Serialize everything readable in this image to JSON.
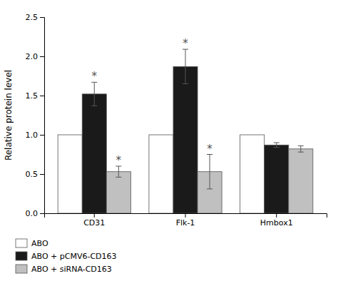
{
  "chart_data": {
    "type": "bar",
    "y_label": "Relative protein level",
    "categories": [
      "CD31",
      "Flk-1",
      "Hmbox1"
    ],
    "series": [
      {
        "name": "ABO",
        "color": "#ffffff",
        "values": [
          1.0,
          1.0,
          1.0
        ]
      },
      {
        "name": "ABO + pCMV6-CD163",
        "color": "#1a1a1a",
        "values": [
          1.52,
          1.87,
          0.87
        ],
        "errors": [
          0.15,
          0.22,
          0.03
        ],
        "annotations": [
          "*",
          "*",
          null
        ]
      },
      {
        "name": "ABO + siRNA-CD163",
        "color": "#c0c0c0",
        "values": [
          0.53,
          0.53,
          0.82
        ],
        "errors": [
          0.07,
          0.22,
          0.04
        ],
        "annotations": [
          "*",
          "*",
          null
        ]
      }
    ],
    "ylim": [
      0.0,
      2.5
    ],
    "yticks": [
      {
        "value": 0.0,
        "label": "0.0"
      },
      0.5,
      {
        "value": 1.0,
        "label": "1.0"
      },
      1.5,
      {
        "value": 2.0,
        "label": "2.0"
      },
      2.5
    ],
    "grid": false,
    "legend": "bottom"
  }
}
